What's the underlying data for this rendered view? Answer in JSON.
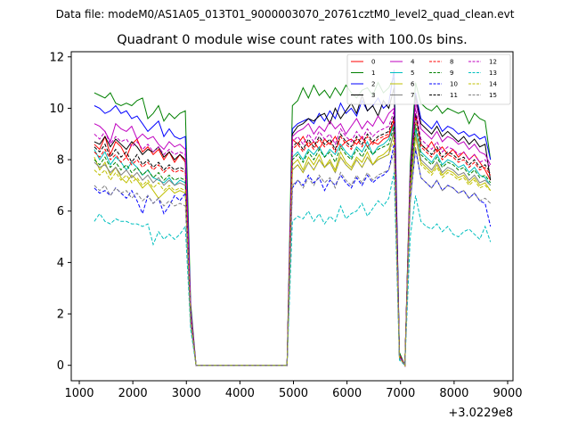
{
  "figure": {
    "suptitle": "Data file: modeM0/AS1A05_013T01_9000003070_20761cztM0_level2_quad_clean.evt"
  },
  "chart_data": {
    "type": "line",
    "title": "Quadrant 0 module wise count rates with 100.0s bins.",
    "xlabel": "",
    "ylabel": "",
    "x_offset_label": "+3.0229e8",
    "xlim": [
      850,
      9100
    ],
    "ylim": [
      -0.6,
      12.2
    ],
    "xticks": [
      1000,
      2000,
      3000,
      4000,
      5000,
      6000,
      7000,
      8000,
      9000
    ],
    "yticks": [
      0,
      2,
      4,
      6,
      8,
      10,
      12
    ],
    "grid": false,
    "legend_position": "top-right",
    "x": [
      1280,
      1380,
      1480,
      1580,
      1680,
      1780,
      1880,
      1980,
      2080,
      2180,
      2280,
      2380,
      2480,
      2580,
      2680,
      2780,
      2880,
      2980,
      3080,
      3180,
      4880,
      4980,
      5080,
      5180,
      5280,
      5380,
      5480,
      5580,
      5680,
      5780,
      5880,
      5980,
      6080,
      6180,
      6280,
      6380,
      6480,
      6580,
      6680,
      6780,
      6880,
      6980,
      7080,
      7180,
      7280,
      7380,
      7480,
      7580,
      7680,
      7780,
      7880,
      7980,
      8080,
      8180,
      8280,
      8380,
      8480,
      8580,
      8680
    ],
    "series": [
      {
        "name": "0",
        "color": "#ff0000",
        "dash": "solid",
        "values": [
          8.6,
          8.4,
          8.9,
          8.2,
          8.7,
          8.5,
          8.1,
          8.6,
          8.8,
          8.3,
          8.5,
          8.2,
          8.4,
          8.0,
          8.3,
          7.9,
          8.2,
          7.9,
          2.0,
          0.0,
          0.0,
          8.8,
          8.6,
          8.9,
          8.5,
          8.7,
          8.4,
          8.8,
          8.6,
          8.9,
          8.5,
          8.7,
          8.8,
          8.6,
          8.9,
          8.5,
          8.7,
          8.6,
          8.8,
          8.9,
          9.5,
          0.4,
          0.0,
          7.5,
          9.8,
          8.6,
          8.4,
          8.7,
          8.3,
          8.5,
          8.2,
          8.4,
          8.1,
          8.3,
          8.0,
          8.2,
          7.9,
          7.6,
          7.2
        ]
      },
      {
        "name": "1",
        "color": "#008000",
        "dash": "solid",
        "values": [
          10.6,
          10.5,
          10.4,
          10.6,
          10.2,
          10.1,
          10.2,
          10.1,
          10.3,
          10.4,
          9.6,
          9.8,
          10.1,
          9.5,
          9.8,
          9.6,
          9.8,
          9.9,
          2.4,
          0.0,
          0.0,
          10.1,
          10.3,
          10.8,
          10.4,
          10.9,
          10.5,
          10.7,
          10.4,
          10.8,
          10.5,
          10.9,
          10.6,
          10.4,
          10.7,
          10.8,
          10.5,
          11.0,
          10.6,
          10.8,
          11.2,
          0.5,
          0.0,
          7.8,
          11.0,
          10.2,
          10.0,
          9.9,
          10.1,
          9.8,
          10.0,
          9.9,
          9.8,
          9.9,
          9.4,
          9.8,
          9.6,
          9.5,
          8.0
        ]
      },
      {
        "name": "2",
        "color": "#0000ff",
        "dash": "solid",
        "values": [
          10.1,
          10.0,
          9.8,
          9.9,
          10.1,
          9.8,
          9.9,
          9.6,
          9.7,
          9.4,
          9.1,
          9.3,
          9.5,
          8.9,
          9.2,
          8.9,
          8.8,
          8.9,
          2.2,
          0.0,
          0.0,
          9.2,
          9.4,
          9.5,
          9.6,
          9.4,
          9.8,
          9.5,
          9.9,
          9.6,
          10.2,
          9.8,
          10.0,
          9.7,
          10.3,
          9.9,
          10.1,
          10.4,
          10.0,
          10.2,
          11.5,
          0.4,
          0.0,
          7.4,
          10.6,
          9.6,
          9.4,
          9.2,
          9.5,
          9.1,
          9.3,
          9.2,
          9.0,
          9.1,
          8.9,
          9.0,
          8.8,
          8.9,
          8.0
        ]
      },
      {
        "name": "3",
        "color": "#000000",
        "dash": "solid",
        "values": [
          8.7,
          8.6,
          8.9,
          8.5,
          8.8,
          8.6,
          8.4,
          8.7,
          8.5,
          8.2,
          8.4,
          8.3,
          8.5,
          8.1,
          8.3,
          8.0,
          8.2,
          8.0,
          2.0,
          0.0,
          0.0,
          9.0,
          9.3,
          9.4,
          9.6,
          9.5,
          9.7,
          9.8,
          9.4,
          10.0,
          9.6,
          9.9,
          10.2,
          9.8,
          10.5,
          9.9,
          10.1,
          9.7,
          10.3,
          10.0,
          10.8,
          0.4,
          0.0,
          7.3,
          10.5,
          9.4,
          9.2,
          9.0,
          9.3,
          8.9,
          9.1,
          8.9,
          8.7,
          8.9,
          8.6,
          8.8,
          8.5,
          8.6,
          7.2
        ]
      },
      {
        "name": "4",
        "color": "#bf00bf",
        "dash": "solid",
        "values": [
          9.4,
          9.3,
          9.1,
          8.7,
          9.4,
          9.2,
          9.1,
          9.3,
          8.8,
          9.0,
          8.8,
          8.9,
          8.6,
          8.4,
          8.7,
          8.5,
          8.6,
          8.4,
          2.1,
          0.0,
          0.0,
          8.9,
          9.1,
          9.2,
          9.4,
          9.0,
          9.3,
          9.1,
          9.5,
          9.2,
          9.4,
          9.0,
          9.3,
          9.6,
          9.2,
          9.5,
          9.3,
          9.7,
          9.4,
          9.8,
          10.0,
          0.4,
          0.0,
          7.2,
          10.3,
          9.2,
          9.0,
          8.8,
          9.1,
          8.7,
          8.9,
          8.8,
          8.6,
          8.7,
          8.4,
          8.6,
          8.3,
          8.2,
          7.8
        ]
      },
      {
        "name": "5",
        "color": "#00bfbf",
        "dash": "solid",
        "values": [
          8.4,
          8.0,
          8.3,
          7.8,
          8.1,
          7.9,
          7.6,
          7.9,
          7.7,
          7.4,
          7.6,
          7.3,
          7.2,
          7.1,
          7.3,
          7.0,
          7.2,
          7.1,
          1.9,
          0.0,
          0.0,
          8.1,
          8.3,
          8.0,
          8.4,
          8.2,
          8.5,
          8.1,
          8.4,
          8.2,
          8.6,
          8.3,
          8.1,
          8.5,
          8.3,
          8.7,
          8.2,
          8.5,
          8.6,
          8.8,
          9.4,
          0.3,
          0.0,
          7.0,
          9.2,
          8.3,
          8.1,
          7.9,
          8.2,
          7.8,
          8.0,
          7.9,
          7.7,
          7.8,
          7.5,
          7.7,
          7.4,
          7.3,
          7.0
        ]
      },
      {
        "name": "6",
        "color": "#bfbf00",
        "dash": "solid",
        "values": [
          8.1,
          7.6,
          7.9,
          7.4,
          7.7,
          7.3,
          7.1,
          7.4,
          7.2,
          6.9,
          7.1,
          6.8,
          6.5,
          6.7,
          6.9,
          6.7,
          6.8,
          6.7,
          1.8,
          0.0,
          0.0,
          7.8,
          8.0,
          7.6,
          8.1,
          7.8,
          8.2,
          7.7,
          8.0,
          7.6,
          8.3,
          7.9,
          7.7,
          8.1,
          7.9,
          8.3,
          7.8,
          8.1,
          8.2,
          8.4,
          9.0,
          0.3,
          0.0,
          6.8,
          8.9,
          7.9,
          7.7,
          7.5,
          7.8,
          7.4,
          7.6,
          7.5,
          7.3,
          7.4,
          7.1,
          7.3,
          7.0,
          7.1,
          6.8
        ]
      },
      {
        "name": "7",
        "color": "#808080",
        "dash": "solid",
        "values": [
          7.9,
          7.7,
          7.8,
          7.5,
          7.7,
          7.4,
          7.6,
          7.3,
          7.5,
          7.2,
          7.4,
          7.1,
          7.3,
          7.0,
          7.2,
          7.0,
          7.1,
          7.0,
          1.8,
          0.0,
          0.0,
          7.6,
          7.8,
          7.5,
          7.9,
          7.6,
          8.0,
          7.7,
          7.9,
          7.5,
          8.1,
          7.8,
          7.6,
          8.0,
          7.7,
          8.1,
          7.8,
          8.0,
          8.1,
          8.2,
          9.2,
          0.3,
          0.0,
          6.9,
          9.0,
          8.0,
          7.8,
          7.6,
          7.9,
          7.5,
          7.7,
          7.6,
          7.4,
          7.5,
          7.2,
          7.4,
          7.1,
          7.2,
          7.0
        ]
      },
      {
        "name": "8",
        "color": "#ff0000",
        "dash": "dashed",
        "values": [
          8.3,
          8.1,
          8.4,
          8.0,
          8.2,
          7.9,
          8.1,
          7.8,
          8.0,
          7.7,
          7.9,
          7.6,
          7.8,
          7.5,
          7.7,
          7.5,
          7.6,
          7.5,
          1.9,
          0.0,
          0.0,
          8.4,
          8.6,
          8.3,
          8.7,
          8.4,
          8.8,
          8.5,
          8.7,
          8.3,
          8.9,
          8.6,
          8.4,
          8.8,
          8.5,
          8.9,
          8.6,
          8.8,
          8.9,
          9.0,
          9.6,
          0.4,
          0.0,
          7.2,
          9.7,
          8.5,
          8.3,
          8.1,
          8.4,
          8.0,
          8.2,
          8.1,
          7.9,
          8.0,
          7.7,
          7.9,
          7.6,
          7.7,
          7.4
        ]
      },
      {
        "name": "9",
        "color": "#008000",
        "dash": "dashed",
        "values": [
          8.0,
          7.8,
          8.1,
          7.7,
          7.9,
          7.6,
          7.8,
          7.5,
          7.7,
          7.4,
          7.6,
          7.3,
          7.5,
          7.2,
          7.4,
          7.2,
          7.3,
          7.2,
          1.8,
          0.0,
          0.0,
          8.0,
          8.2,
          7.9,
          8.3,
          8.0,
          8.4,
          8.1,
          8.3,
          7.9,
          8.5,
          8.2,
          8.0,
          8.4,
          8.1,
          8.5,
          8.2,
          8.4,
          8.5,
          8.6,
          9.3,
          0.3,
          0.0,
          7.0,
          9.4,
          8.2,
          8.0,
          7.8,
          8.1,
          7.7,
          7.9,
          7.8,
          7.6,
          7.7,
          7.4,
          7.6,
          7.3,
          7.4,
          7.1
        ]
      },
      {
        "name": "10",
        "color": "#0000ff",
        "dash": "dashed",
        "values": [
          6.9,
          6.7,
          6.8,
          6.6,
          6.9,
          6.7,
          6.5,
          6.8,
          6.4,
          5.9,
          6.6,
          6.3,
          6.5,
          5.9,
          6.2,
          6.6,
          6.4,
          6.7,
          1.7,
          0.0,
          0.0,
          6.9,
          7.2,
          7.0,
          7.4,
          7.1,
          7.3,
          6.8,
          7.2,
          7.0,
          7.4,
          7.1,
          6.9,
          7.3,
          7.0,
          7.4,
          7.1,
          7.3,
          7.4,
          7.6,
          8.6,
          0.3,
          0.0,
          6.4,
          8.4,
          7.3,
          7.1,
          6.9,
          7.2,
          6.8,
          7.0,
          6.9,
          6.7,
          6.8,
          6.5,
          6.7,
          6.4,
          6.3,
          5.4
        ]
      },
      {
        "name": "11",
        "color": "#000000",
        "dash": "dashed",
        "values": [
          8.5,
          8.3,
          8.6,
          8.1,
          8.4,
          8.1,
          8.3,
          7.9,
          8.2,
          7.8,
          8.0,
          7.7,
          7.9,
          7.6,
          7.8,
          7.6,
          7.7,
          7.6,
          1.9,
          0.0,
          0.0,
          8.5,
          8.7,
          8.4,
          8.8,
          8.5,
          8.9,
          8.6,
          8.8,
          8.4,
          9.0,
          8.7,
          8.5,
          8.9,
          8.6,
          9.0,
          8.7,
          8.9,
          9.0,
          9.1,
          9.7,
          0.4,
          0.0,
          7.3,
          9.8,
          8.6,
          8.4,
          8.2,
          8.5,
          8.1,
          8.3,
          8.2,
          8.0,
          8.1,
          7.8,
          8.0,
          7.7,
          7.8,
          7.5
        ]
      },
      {
        "name": "12",
        "color": "#bf00bf",
        "dash": "dashed",
        "values": [
          9.0,
          8.8,
          9.1,
          8.6,
          8.9,
          8.7,
          8.8,
          8.5,
          8.7,
          8.4,
          8.6,
          8.3,
          8.5,
          8.2,
          8.4,
          8.2,
          8.3,
          8.2,
          2.0,
          0.0,
          0.0,
          8.7,
          8.9,
          8.6,
          9.0,
          8.7,
          9.1,
          8.8,
          9.0,
          8.6,
          9.2,
          8.9,
          8.7,
          9.1,
          8.8,
          9.2,
          8.9,
          9.1,
          9.2,
          9.3,
          9.9,
          0.4,
          0.0,
          7.4,
          10.0,
          8.8,
          8.6,
          8.4,
          8.7,
          8.3,
          8.5,
          8.4,
          8.2,
          8.3,
          8.0,
          8.2,
          7.9,
          8.0,
          7.7
        ]
      },
      {
        "name": "13",
        "color": "#00bfbf",
        "dash": "dashed",
        "values": [
          5.6,
          5.9,
          5.6,
          5.5,
          5.7,
          5.6,
          5.6,
          5.5,
          5.5,
          5.4,
          5.5,
          4.7,
          5.2,
          4.9,
          5.1,
          4.9,
          5.1,
          5.4,
          1.4,
          0.0,
          0.0,
          5.6,
          5.8,
          5.7,
          6.0,
          5.6,
          5.9,
          5.5,
          5.8,
          5.6,
          6.2,
          5.7,
          5.9,
          6.0,
          6.3,
          5.8,
          6.1,
          6.4,
          6.2,
          6.5,
          7.5,
          0.2,
          0.0,
          5.0,
          6.6,
          5.6,
          5.4,
          5.3,
          5.5,
          5.2,
          5.4,
          5.1,
          5.0,
          5.2,
          5.3,
          5.1,
          4.9,
          5.4,
          4.8
        ]
      },
      {
        "name": "14",
        "color": "#bfbf00",
        "dash": "dashed",
        "values": [
          7.6,
          7.4,
          7.6,
          7.2,
          7.5,
          7.2,
          7.4,
          7.1,
          7.3,
          7.0,
          7.2,
          6.9,
          7.1,
          6.8,
          7.0,
          6.8,
          6.9,
          6.8,
          1.8,
          0.0,
          0.0,
          7.6,
          7.8,
          7.5,
          7.9,
          7.6,
          8.0,
          7.7,
          7.9,
          7.5,
          8.1,
          7.8,
          7.6,
          8.0,
          7.7,
          8.1,
          7.8,
          8.0,
          8.1,
          8.2,
          8.8,
          0.3,
          0.0,
          6.7,
          8.9,
          7.8,
          7.6,
          7.4,
          7.7,
          7.3,
          7.5,
          7.4,
          7.2,
          7.3,
          7.0,
          7.2,
          6.9,
          7.0,
          6.8
        ]
      },
      {
        "name": "15",
        "color": "#808080",
        "dash": "dashed",
        "values": [
          7.0,
          6.8,
          7.0,
          6.6,
          6.9,
          6.7,
          6.8,
          6.5,
          6.7,
          6.4,
          6.6,
          6.3,
          6.5,
          6.2,
          6.4,
          6.2,
          6.3,
          6.2,
          1.6,
          0.0,
          0.0,
          7.0,
          7.2,
          6.9,
          7.3,
          7.0,
          7.4,
          7.1,
          7.3,
          6.9,
          7.5,
          7.2,
          7.0,
          7.4,
          7.1,
          7.5,
          7.2,
          7.4,
          7.5,
          7.6,
          8.3,
          0.3,
          0.0,
          6.3,
          8.5,
          7.3,
          7.1,
          6.9,
          7.2,
          6.8,
          7.0,
          6.9,
          6.7,
          6.8,
          6.5,
          6.7,
          6.4,
          6.5,
          6.3
        ]
      }
    ]
  }
}
